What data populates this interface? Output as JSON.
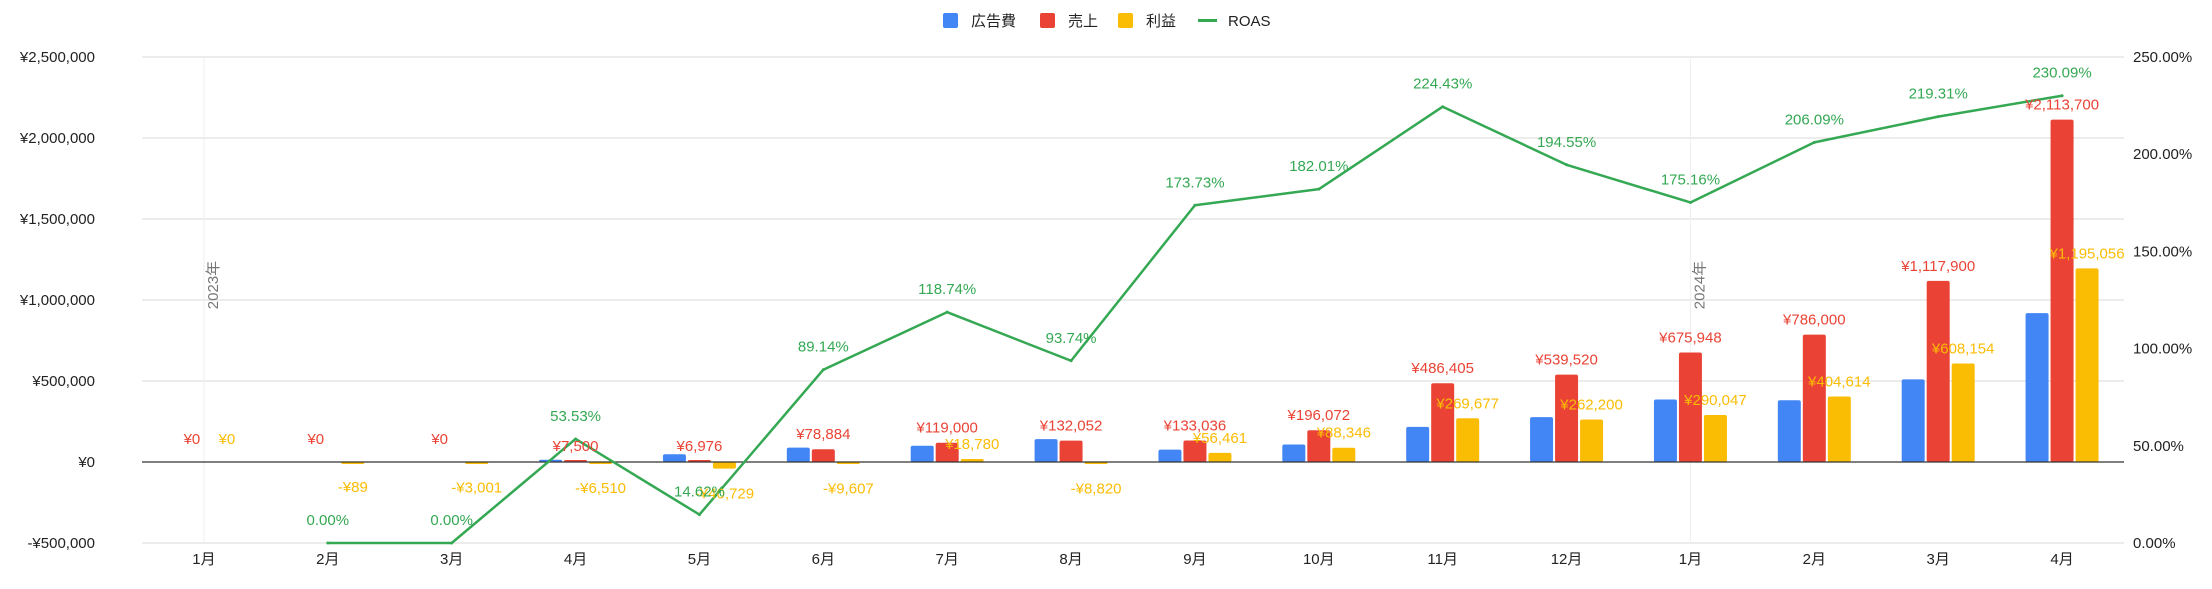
{
  "colors": {
    "ad_cost": "#4285F4",
    "sales": "#EA4335",
    "profit": "#FBBC04",
    "roas": "#34A853",
    "grid": "#d9d9d9",
    "axis_text": "#222222",
    "year_text": "#777777"
  },
  "legend": {
    "placement": "top-center",
    "items": [
      {
        "label": "広告費",
        "color": "#4285F4",
        "kind": "box"
      },
      {
        "label": "売上",
        "color": "#EA4335",
        "kind": "box"
      },
      {
        "label": "利益",
        "color": "#FBBC04",
        "kind": "box"
      },
      {
        "label": "ROAS",
        "color": "#34A853",
        "kind": "line"
      }
    ]
  },
  "chart_data": {
    "type": "bar",
    "title": "",
    "grid": true,
    "categories": [
      "1月",
      "2月",
      "3月",
      "4月",
      "5月",
      "6月",
      "7月",
      "8月",
      "9月",
      "10月",
      "11月",
      "12月",
      "1月",
      "2月",
      "3月",
      "4月"
    ],
    "year_markers": [
      {
        "label": "2023年",
        "category_index": 0
      },
      {
        "label": "2024年",
        "category_index": 12
      }
    ],
    "left_axis": {
      "ylim": [
        -500000,
        2500000
      ],
      "ticks": [
        -500000,
        0,
        500000,
        1000000,
        1500000,
        2000000,
        2500000
      ],
      "tick_labels": [
        "-¥500,000",
        "¥0",
        "¥500,000",
        "¥1,000,000",
        "¥1,500,000",
        "¥2,000,000",
        "¥2,500,000"
      ]
    },
    "right_axis": {
      "ylim": [
        0,
        250
      ],
      "ticks": [
        0,
        50,
        100,
        150,
        200,
        250
      ],
      "tick_labels": [
        "0.00%",
        "50.00%",
        "100.00%",
        "150.00%",
        "200.00%",
        "250.00%"
      ]
    },
    "series": [
      {
        "name": "広告費",
        "type": "bar",
        "axis": "left",
        "color": "#4285F4",
        "values": [
          0,
          0,
          0,
          14000,
          47700,
          88500,
          100200,
          141000,
          76600,
          107700,
          216700,
          277300,
          385900,
          381400,
          509800,
          918600
        ],
        "labels": []
      },
      {
        "name": "売上",
        "type": "bar",
        "axis": "left",
        "color": "#EA4335",
        "values": [
          0,
          0,
          0,
          7500,
          6976,
          78884,
          119000,
          132052,
          133036,
          196072,
          486405,
          539520,
          675948,
          786000,
          1117900,
          2113700
        ],
        "labels": [
          "¥0",
          "¥0",
          "¥0",
          "¥7,500",
          "¥6,976",
          "¥78,884",
          "¥119,000",
          "¥132,052",
          "¥133,036",
          "¥196,072",
          "¥486,405",
          "¥539,520",
          "¥675,948",
          "¥786,000",
          "¥1,117,900",
          "¥2,113,700"
        ]
      },
      {
        "name": "利益",
        "type": "bar",
        "axis": "left",
        "color": "#FBBC04",
        "values": [
          0,
          -89,
          -3001,
          -6510,
          -40729,
          -9607,
          18780,
          -8820,
          56461,
          88346,
          269677,
          262200,
          290047,
          404614,
          608154,
          1195056
        ],
        "labels": [
          "¥0",
          "-¥89",
          "-¥3,001",
          "-¥6,510",
          "-¥40,729",
          "-¥9,607",
          "¥18,780",
          "-¥8,820",
          "¥56,461",
          "¥88,346",
          "¥269,677",
          "¥262,200",
          "¥290,047",
          "¥404,614",
          "¥608,154",
          "¥1,195,056"
        ]
      },
      {
        "name": "ROAS",
        "type": "line",
        "axis": "right",
        "color": "#34A853",
        "values": [
          null,
          0,
          0,
          53.53,
          14.62,
          89.14,
          118.74,
          93.74,
          173.73,
          182.01,
          224.43,
          194.55,
          175.16,
          206.09,
          219.31,
          230.09
        ],
        "labels": [
          "",
          "0.00%",
          "0.00%",
          "53.53%",
          "14.62%",
          "89.14%",
          "118.74%",
          "93.74%",
          "173.73%",
          "182.01%",
          "224.43%",
          "194.55%",
          "175.16%",
          "206.09%",
          "219.31%",
          "230.09%"
        ]
      }
    ]
  }
}
